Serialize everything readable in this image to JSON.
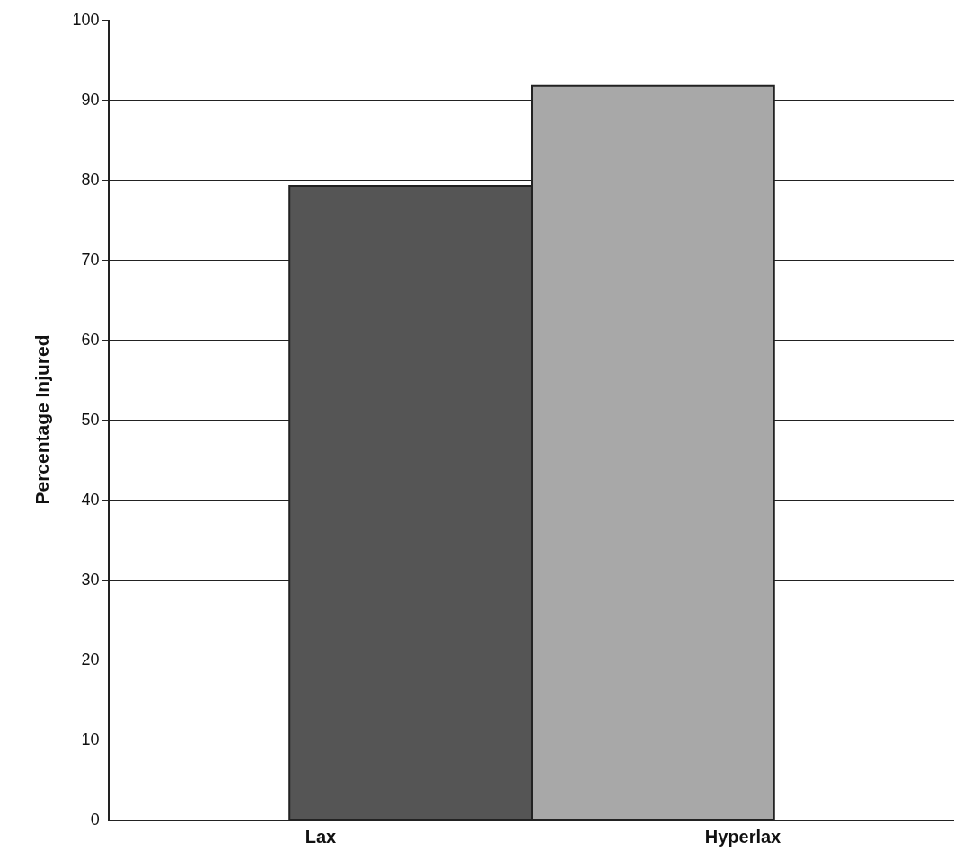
{
  "chart_data": {
    "type": "bar",
    "ylabel": "Percentage Injured",
    "categories": [
      "Lax",
      "Hyperlax"
    ],
    "values": [
      79.2,
      91.7
    ],
    "colors": [
      "#555555",
      "#a8a8a8"
    ],
    "ylim": [
      0,
      100
    ],
    "yticks": [
      0,
      10,
      20,
      30,
      40,
      50,
      60,
      70,
      80,
      90,
      100
    ],
    "grid": "y"
  }
}
